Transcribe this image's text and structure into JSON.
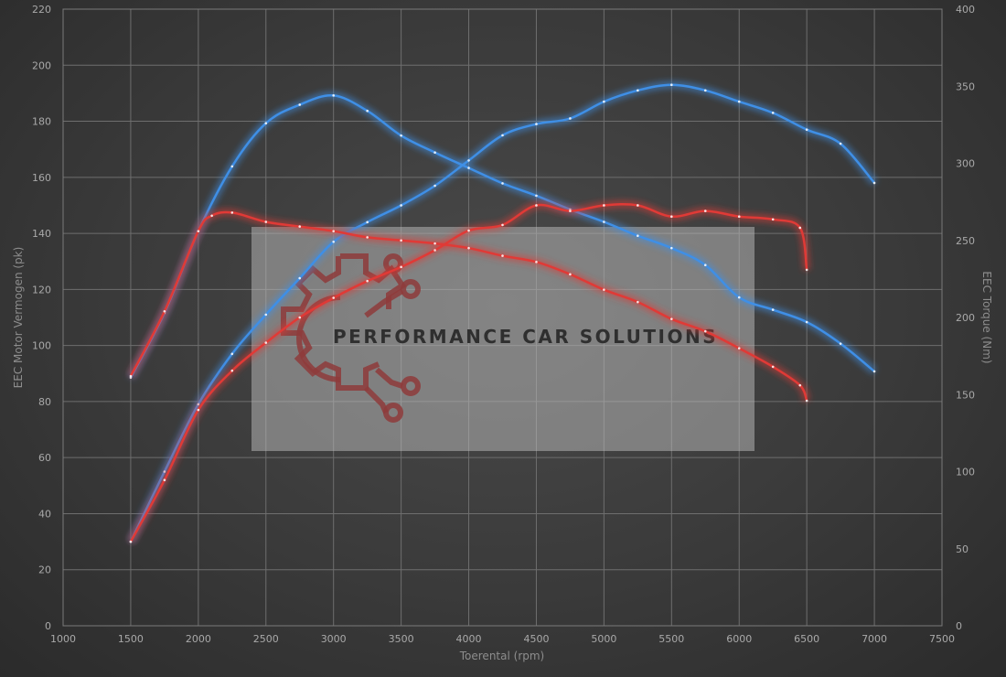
{
  "chart_data": {
    "type": "line",
    "xlabel": "Toerental (rpm)",
    "ylabel_left": "EEC Motor Vermogen (pk)",
    "ylabel_right": "EEC Torque (Nm)",
    "xlim": [
      1000,
      7500
    ],
    "ylim_left": [
      0,
      220
    ],
    "ylim_right": [
      0,
      400
    ],
    "x_ticks": [
      1000,
      1500,
      2000,
      2500,
      3000,
      3500,
      4000,
      4500,
      5000,
      5500,
      6000,
      6500,
      7000,
      7500
    ],
    "y_left_ticks": [
      0,
      20,
      40,
      60,
      80,
      100,
      120,
      140,
      160,
      180,
      200,
      220
    ],
    "y_right_ticks": [
      0,
      50,
      100,
      150,
      200,
      250,
      300,
      350,
      400
    ],
    "grid": true,
    "series": [
      {
        "color": "#3f8fe6",
        "axis": "left",
        "x": [
          1500,
          1750,
          2000,
          2250,
          2500,
          2750,
          3000,
          3250,
          3500,
          3750,
          4000,
          4250,
          4500,
          4750,
          5000,
          5250,
          5500,
          5750,
          6000,
          6250,
          6500,
          6750,
          7000
        ],
        "y": [
          30,
          55,
          79,
          97,
          111,
          124,
          137,
          144,
          150,
          157,
          166,
          175,
          179,
          181,
          187,
          191,
          193,
          191,
          187,
          183,
          177,
          172,
          158
        ]
      },
      {
        "color": "#3f8fe6",
        "axis": "right",
        "x": [
          1500,
          1750,
          2000,
          2250,
          2500,
          2750,
          3000,
          3250,
          3500,
          3750,
          4000,
          4250,
          4500,
          4750,
          5000,
          5250,
          5500,
          5750,
          6000,
          6250,
          6500,
          6750,
          7000
        ],
        "y": [
          161,
          203,
          256,
          298,
          326,
          338,
          344,
          334,
          318,
          307,
          297,
          287,
          279,
          270,
          262,
          253,
          245,
          234,
          213,
          205,
          197,
          183,
          165
        ]
      },
      {
        "color": "#e03a36",
        "axis": "left",
        "x": [
          1500,
          1750,
          2000,
          2250,
          2500,
          2750,
          3000,
          3250,
          3500,
          3750,
          4000,
          4250,
          4500,
          4750,
          5000,
          5250,
          5500,
          5750,
          6000,
          6250,
          6450,
          6500
        ],
        "y": [
          30,
          52,
          77,
          91,
          101,
          110,
          117,
          123,
          128,
          134,
          141,
          143,
          150,
          148,
          150,
          150,
          146,
          148,
          146,
          145,
          142,
          127
        ]
      },
      {
        "color": "#e03a36",
        "axis": "right",
        "x": [
          1500,
          1750,
          2000,
          2100,
          2250,
          2500,
          2750,
          3000,
          3250,
          3500,
          3750,
          4000,
          4250,
          4500,
          4750,
          5000,
          5250,
          5500,
          5750,
          6000,
          6250,
          6450,
          6500
        ],
        "y": [
          162,
          204,
          256,
          266,
          268,
          262,
          259,
          256,
          252,
          250,
          248,
          245,
          240,
          236,
          228,
          218,
          210,
          199,
          191,
          180,
          168,
          156,
          146
        ]
      }
    ],
    "watermark": "PERFORMANCE CAR SOLUTIONS"
  }
}
